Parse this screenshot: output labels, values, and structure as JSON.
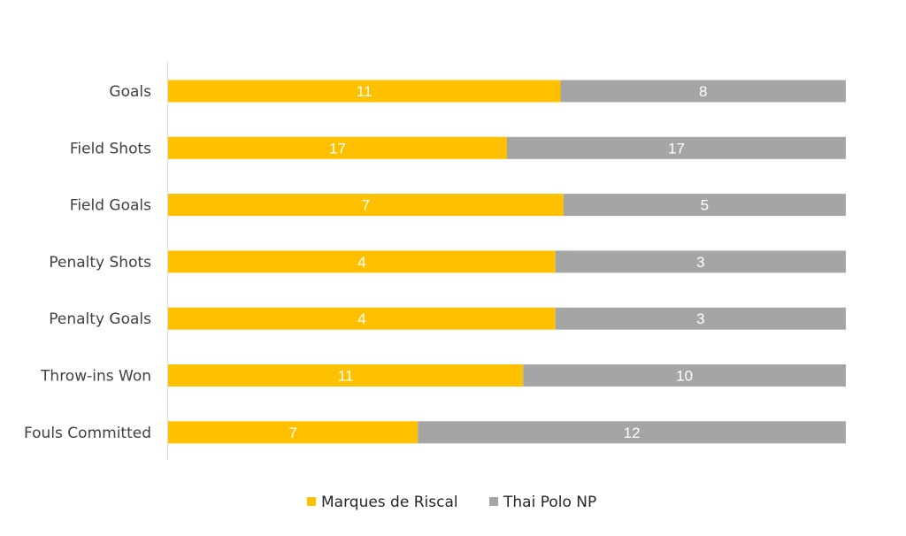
{
  "chart_data": {
    "type": "bar",
    "orientation": "horizontal",
    "stacked": "percent",
    "categories": [
      "Goals",
      "Field Shots",
      "Field Goals",
      "Penalty Shots",
      "Penalty Goals",
      "Throw-ins Won",
      "Fouls Committed"
    ],
    "series": [
      {
        "name": "Marques de Riscal",
        "values": [
          11,
          17,
          7,
          4,
          4,
          11,
          7
        ],
        "color": "#FFC000"
      },
      {
        "name": "Thai Polo NP",
        "values": [
          8,
          17,
          5,
          3,
          3,
          10,
          12
        ],
        "color": "#A5A5A5"
      }
    ],
    "title": "",
    "xlabel": "",
    "ylabel": "",
    "grid": false,
    "legend": "bottom",
    "data_labels": true
  }
}
